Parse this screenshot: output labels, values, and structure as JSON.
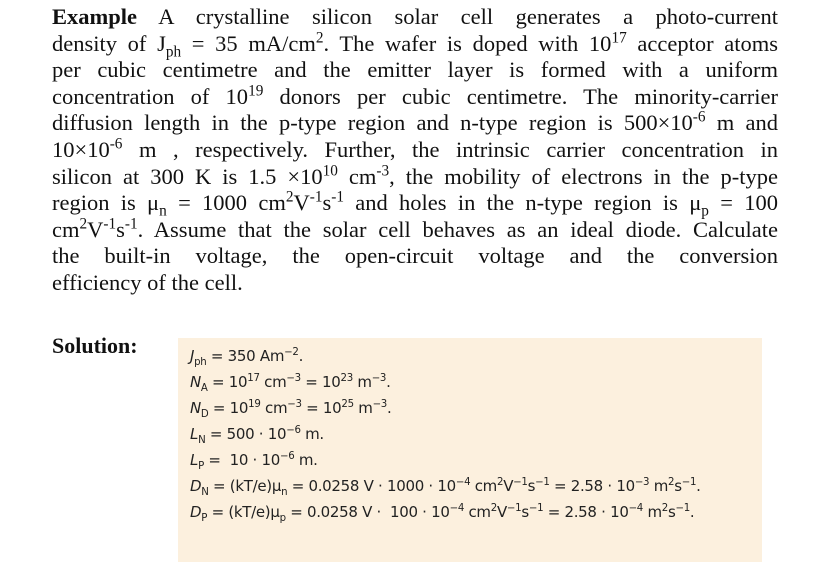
{
  "example": {
    "lines": [
      [
        {
          "bold": "Example"
        },
        " A crystalline silicon solar cell generates a photo-current"
      ],
      [
        "density of J",
        {
          "sub": "ph"
        },
        " = 35 mA/cm",
        {
          "sup": "2"
        },
        ". The wafer is doped with 10",
        {
          "sup": "17"
        },
        " acceptor atoms"
      ],
      [
        "per cubic centimetre and the emitter layer is formed with a uniform"
      ],
      [
        "concentration of 10",
        {
          "sup": "19"
        },
        " donors per cubic centimetre. The minority-carrier"
      ],
      [
        "diffusion length in the p-type region and n-type region is 500×10",
        {
          "sup": "-6"
        },
        " m and"
      ],
      [
        "10×10",
        {
          "sup": "-6"
        },
        " m , respectively. Further, the intrinsic carrier concentration in"
      ],
      [
        "silicon at 300 K is 1.5 ×10",
        {
          "sup": "10"
        },
        " cm",
        {
          "sup": "-3"
        },
        ", the mobility of electrons in the p-type"
      ],
      [
        "region is μ",
        {
          "sub": "n"
        },
        " = 1000 cm",
        {
          "sup": "2"
        },
        "V",
        {
          "sup": "-1"
        },
        "s",
        {
          "sup": "-1"
        },
        " and holes in the n-type region is μ",
        {
          "sub": "p"
        },
        " = 100"
      ],
      [
        "cm",
        {
          "sup": "2"
        },
        "V",
        {
          "sup": "-1"
        },
        "s",
        {
          "sup": "-1"
        },
        ". Assume that the solar cell behaves as an ideal diode. Calculate"
      ],
      [
        "the built-in voltage, the  open-circuit voltage and the conversion"
      ],
      [
        "efficiency of the cell."
      ]
    ]
  },
  "solution": {
    "label": "Solution:",
    "equations": [
      [
        "J",
        {
          "sub": "ph"
        },
        " = 350 Am",
        {
          "sup": "−2"
        },
        "."
      ],
      [
        "N",
        {
          "sub": "A"
        },
        " = 10",
        {
          "sup": "17"
        },
        " cm",
        {
          "sup": "−3"
        },
        " = 10",
        {
          "sup": "23"
        },
        " m",
        {
          "sup": "−3"
        },
        "."
      ],
      [
        "N",
        {
          "sub": "D"
        },
        " = 10",
        {
          "sup": "19"
        },
        " cm",
        {
          "sup": "−3"
        },
        " = 10",
        {
          "sup": "25"
        },
        " m",
        {
          "sup": "−3"
        },
        "."
      ],
      [
        "L",
        {
          "sub": "N"
        },
        " = 500 · 10",
        {
          "sup": "−6"
        },
        " m."
      ],
      [
        "L",
        {
          "sub": "P"
        },
        " =  10 · 10",
        {
          "sup": "−6"
        },
        " m."
      ],
      [
        "D",
        {
          "sub": "N"
        },
        " = (kT/e)μ",
        {
          "sub": "n"
        },
        " = 0.0258 V · 1000 · 10",
        {
          "sup": "−4"
        },
        " cm",
        {
          "sup": "2"
        },
        "V",
        {
          "sup": "−1"
        },
        "s",
        {
          "sup": "−1"
        },
        " = 2.58 · 10",
        {
          "sup": "−3"
        },
        " m",
        {
          "sup": "2"
        },
        "s",
        {
          "sup": "−1"
        },
        "."
      ],
      [
        "D",
        {
          "sub": "P"
        },
        " = (kT/e)μ",
        {
          "sub": "p"
        },
        " = 0.0258 V ·  100 · 10",
        {
          "sup": "−4"
        },
        " cm",
        {
          "sup": "2"
        },
        "V",
        {
          "sup": "−1"
        },
        "s",
        {
          "sup": "−1"
        },
        " = 2.58 · 10",
        {
          "sup": "−4"
        },
        " m",
        {
          "sup": "2"
        },
        "s",
        {
          "sup": "−1"
        },
        "."
      ]
    ]
  }
}
